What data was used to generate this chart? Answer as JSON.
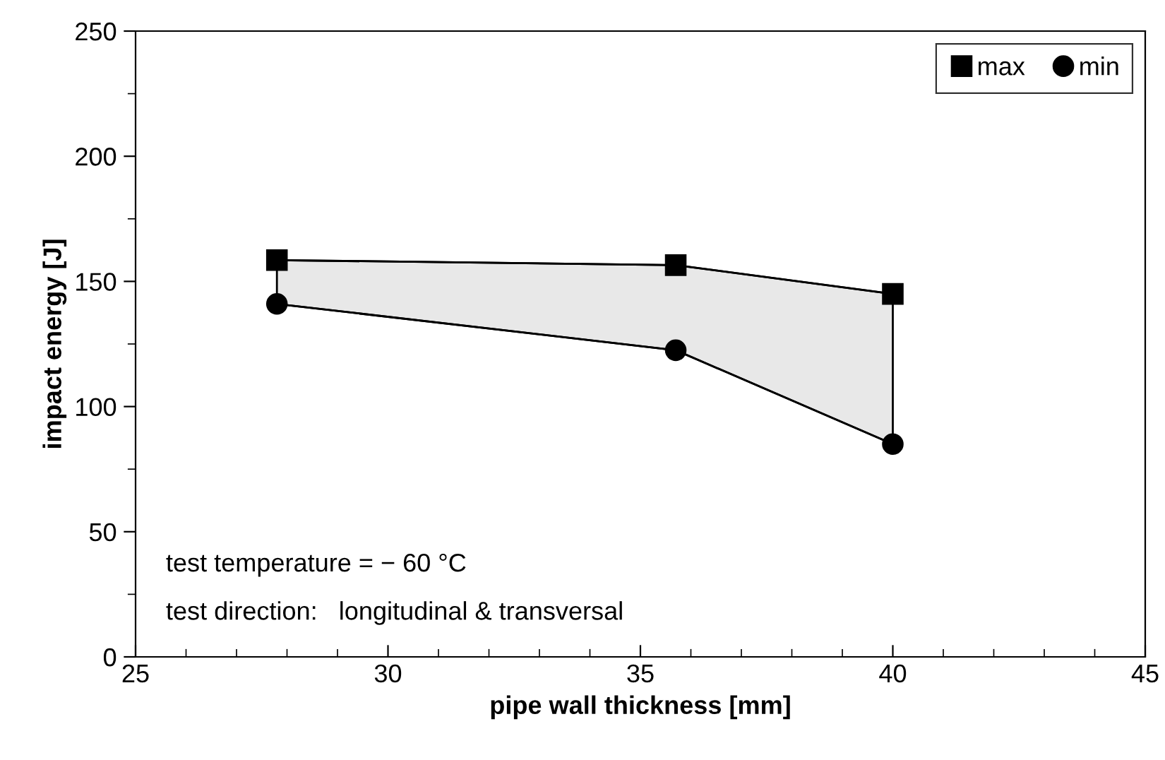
{
  "chart_data": {
    "type": "line",
    "xlabel": "pipe wall thickness [mm]",
    "ylabel": "impact energy [J]",
    "x": [
      27.8,
      35.7,
      40
    ],
    "series": [
      {
        "name": "max",
        "marker": "square",
        "color": "#000000",
        "values": [
          158.5,
          156.5,
          145
        ]
      },
      {
        "name": "min",
        "marker": "circle",
        "color": "#000000",
        "values": [
          141,
          122.5,
          85
        ],
        "lower": [
          141,
          122.5,
          85
        ],
        "upper": [
          158.5,
          156.5,
          145
        ]
      }
    ],
    "xlim": [
      25,
      45
    ],
    "xticks": [
      25,
      30,
      35,
      40,
      45
    ],
    "ylim": [
      0,
      250
    ],
    "yticks": [
      0,
      50,
      100,
      150,
      200,
      250
    ],
    "grid": false,
    "legend": "top right",
    "annotations": [
      "test temperature = − 60 °C",
      "test direction:   longitudinal & transversal"
    ]
  }
}
